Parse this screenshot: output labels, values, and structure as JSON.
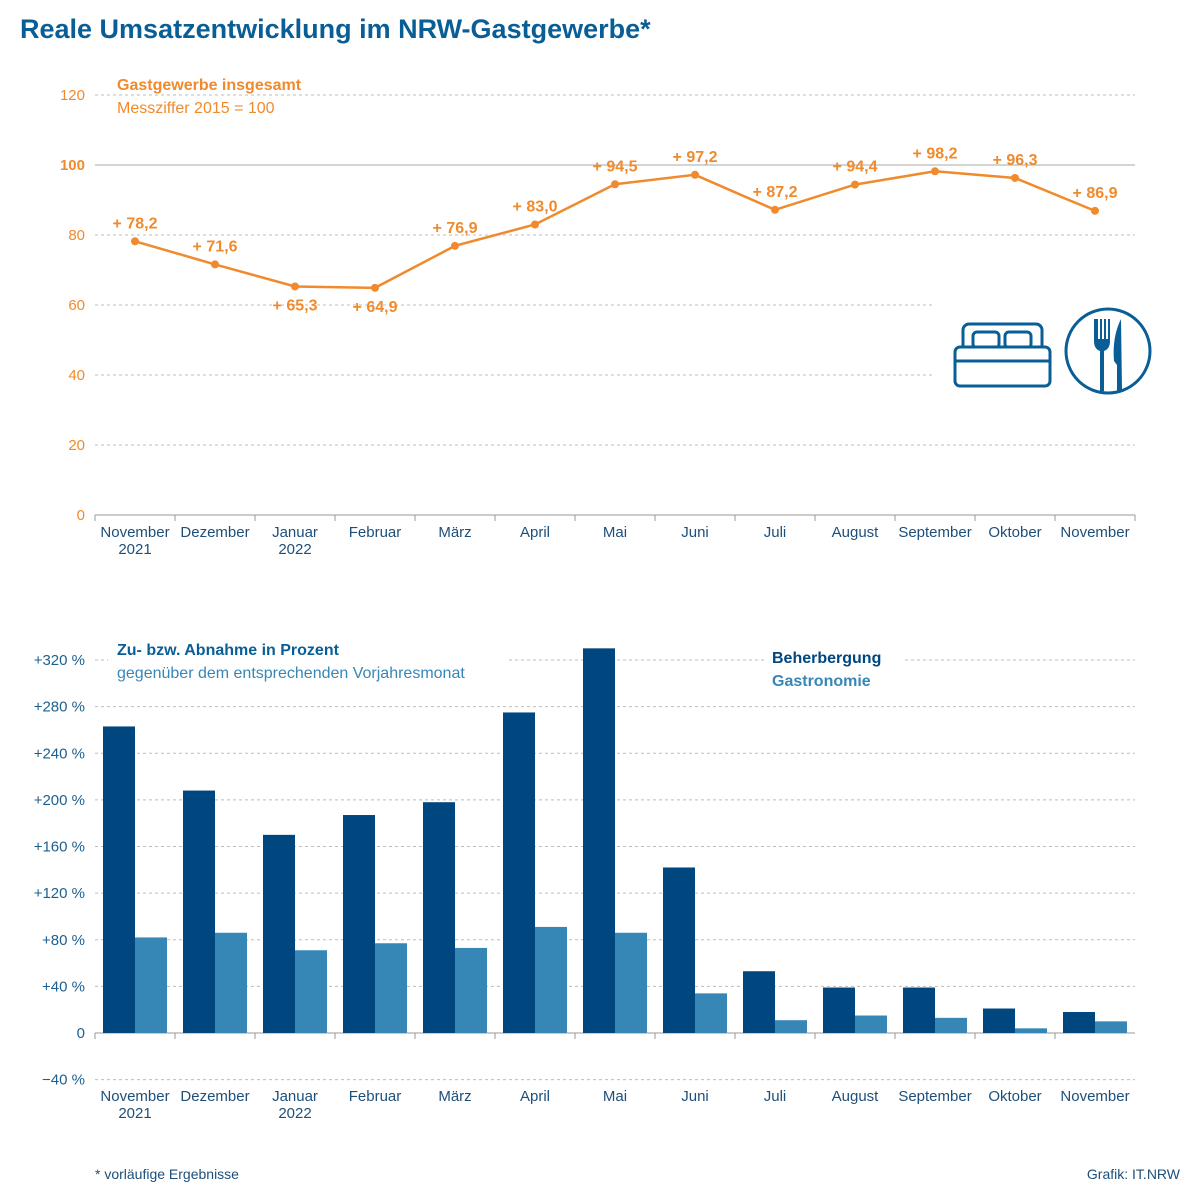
{
  "title": "Reale Umsatzentwicklung im NRW-Gastgewerbe*",
  "footnote": "*  vorläufige Ergebnisse",
  "credit": "Grafik: IT.NRW",
  "colors": {
    "title": "#0a5e96",
    "orange": "#f08a2c",
    "beherbergung": "#00467f",
    "gastronomie": "#3787b6",
    "grid": "#bdbdbd"
  },
  "icons": [
    "bed-icon",
    "cutlery-icon"
  ],
  "chart_data": [
    {
      "type": "line",
      "title": "Gastgewerbe insgesamt",
      "subtitle": "Messziffer 2015 = 100",
      "categories": [
        [
          "November",
          "2021"
        ],
        [
          "Dezember"
        ],
        [
          "Januar",
          "2022"
        ],
        [
          "Februar"
        ],
        [
          "März"
        ],
        [
          "April"
        ],
        [
          "Mai"
        ],
        [
          "Juni"
        ],
        [
          "Juli"
        ],
        [
          "August"
        ],
        [
          "September"
        ],
        [
          "Oktober"
        ],
        [
          "November"
        ]
      ],
      "values": [
        78.2,
        71.6,
        65.3,
        64.9,
        76.9,
        83.0,
        94.5,
        97.2,
        87.2,
        94.4,
        98.2,
        96.3,
        86.9
      ],
      "data_labels": [
        "+ 78,2",
        "+ 71,6",
        "+ 65,3",
        "+ 64,9",
        "+ 76,9",
        "+ 83,0",
        "+ 94,5",
        "+ 97,2",
        "+ 87,2",
        "+ 94,4",
        "+ 98,2",
        "+ 96,3",
        "+ 86,9"
      ],
      "yticks": [
        0,
        20,
        40,
        60,
        80,
        100,
        120
      ],
      "ylim": [
        0,
        120
      ],
      "reference_line": 100,
      "grid": true
    },
    {
      "type": "bar",
      "title": "Zu- bzw. Abnahme in Prozent",
      "subtitle": "gegenüber dem entsprechenden Vorjahresmonat",
      "categories": [
        [
          "November",
          "2021"
        ],
        [
          "Dezember"
        ],
        [
          "Januar",
          "2022"
        ],
        [
          "Februar"
        ],
        [
          "März"
        ],
        [
          "April"
        ],
        [
          "Mai"
        ],
        [
          "Juni"
        ],
        [
          "Juli"
        ],
        [
          "August"
        ],
        [
          "September"
        ],
        [
          "Oktober"
        ],
        [
          "November"
        ]
      ],
      "series": [
        {
          "name": "Beherbergung",
          "values": [
            263,
            208,
            170,
            187,
            198,
            275,
            330,
            142,
            53,
            39,
            39,
            21,
            18
          ]
        },
        {
          "name": "Gastronomie",
          "values": [
            82,
            86,
            71,
            77,
            73,
            91,
            86,
            34,
            11,
            15,
            13,
            4,
            10
          ]
        }
      ],
      "yticks": [
        -40,
        0,
        40,
        80,
        120,
        160,
        200,
        240,
        280,
        320
      ],
      "ytick_labels": [
        "−40 %",
        "0",
        "+40 %",
        "+80 %",
        "+120 %",
        "+160 %",
        "+200 %",
        "+240 %",
        "+280 %",
        "+320 %"
      ],
      "ylim": [
        -40,
        320
      ],
      "legend_position": "top-right",
      "grid": true
    }
  ]
}
